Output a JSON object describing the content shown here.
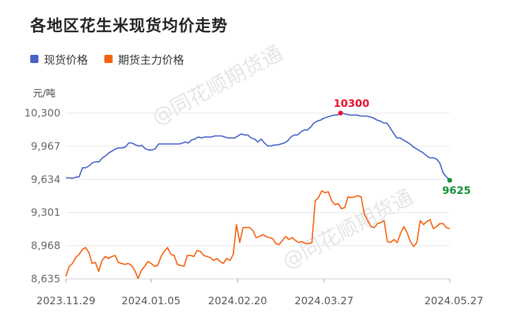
{
  "title": "各地区花生米现货均价走势",
  "watermark": "@同花顺期货通",
  "colors": {
    "spot": "#4a63c8",
    "futures": "#f5620f",
    "max_marker": "#e8112d",
    "last_marker": "#15903a",
    "grid": "#e6e6e6",
    "axis_text": "#666666"
  },
  "chart_data": {
    "type": "line",
    "y_unit": "元/吨",
    "ylim": [
      8635,
      10300
    ],
    "yticks": [
      "8,635",
      "8,968",
      "9,301",
      "9,634",
      "9,967",
      "10,300"
    ],
    "xticks": [
      "2023.11.29",
      "2024.01.05",
      "2024.02.20",
      "2024.03.27",
      "2024.05.27"
    ],
    "grid": true,
    "legend_position": "top-left",
    "series": [
      {
        "name": "现货价格",
        "color": "#4a63c8",
        "values": [
          9650,
          9650,
          9645,
          9655,
          9660,
          9750,
          9750,
          9770,
          9800,
          9810,
          9810,
          9850,
          9870,
          9900,
          9920,
          9940,
          9950,
          9950,
          9960,
          10000,
          10000,
          9980,
          9970,
          9975,
          9940,
          9930,
          9930,
          9940,
          9990,
          9990,
          9990,
          9990,
          9990,
          9990,
          9990,
          9995,
          10010,
          10000,
          10030,
          10040,
          10060,
          10050,
          10060,
          10060,
          10060,
          10070,
          10070,
          10070,
          10060,
          10050,
          10050,
          10050,
          10070,
          10090,
          10080,
          10080,
          10050,
          10040,
          10010,
          10040,
          10000,
          9970,
          9970,
          9980,
          9980,
          9990,
          10000,
          10020,
          10060,
          10080,
          10080,
          10110,
          10130,
          10130,
          10160,
          10200,
          10220,
          10230,
          10250,
          10260,
          10270,
          10280,
          10280,
          10300,
          10295,
          10285,
          10280,
          10280,
          10280,
          10270,
          10270,
          10270,
          10260,
          10250,
          10230,
          10220,
          10200,
          10200,
          10150,
          10100,
          10050,
          10050,
          10030,
          10010,
          9990,
          9960,
          9940,
          9920,
          9900,
          9870,
          9850,
          9850,
          9840,
          9800,
          9700,
          9660,
          9625
        ],
        "max_label": "10300",
        "last_label": "9625"
      },
      {
        "name": "期货主力价格",
        "color": "#f5620f",
        "values": [
          8660,
          8760,
          8790,
          8850,
          8880,
          8930,
          8950,
          8900,
          8790,
          8800,
          8710,
          8820,
          8860,
          8840,
          8860,
          8870,
          8800,
          8790,
          8780,
          8790,
          8770,
          8720,
          8640,
          8720,
          8760,
          8810,
          8790,
          8760,
          8770,
          8860,
          8910,
          8950,
          8880,
          8870,
          8780,
          8770,
          8760,
          8870,
          8870,
          8860,
          8920,
          8910,
          8870,
          8860,
          8850,
          8820,
          8840,
          8810,
          8790,
          8840,
          8820,
          8880,
          9180,
          9000,
          9150,
          9150,
          9150,
          9120,
          9050,
          9060,
          9080,
          9060,
          9050,
          9040,
          8990,
          8980,
          9020,
          9060,
          9030,
          9050,
          9020,
          9000,
          9010,
          8990,
          8990,
          9000,
          9420,
          9450,
          9520,
          9500,
          9510,
          9420,
          9380,
          9390,
          9340,
          9350,
          9460,
          9450,
          9460,
          9470,
          9460,
          9280,
          9220,
          9160,
          9150,
          9190,
          9200,
          9220,
          9010,
          9000,
          9030,
          9000,
          9090,
          9160,
          9100,
          9010,
          8960,
          9000,
          9220,
          9180,
          9210,
          9230,
          9140,
          9160,
          9190,
          9190,
          9150,
          9140
        ]
      }
    ]
  }
}
